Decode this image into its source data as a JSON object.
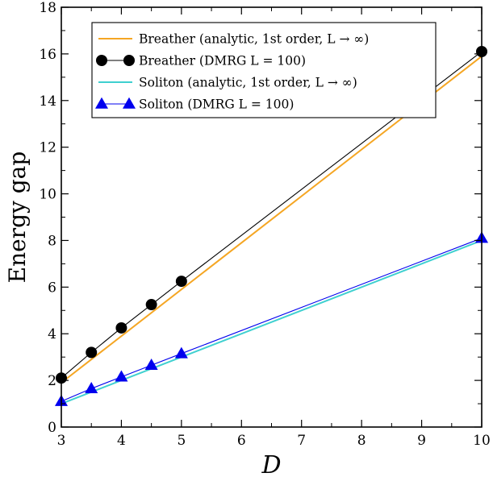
{
  "chart_data": {
    "type": "line",
    "xlabel": "D",
    "ylabel": "Energy gap",
    "xlim": [
      3,
      10
    ],
    "ylim": [
      0,
      18
    ],
    "xticks": [
      3,
      4,
      5,
      6,
      7,
      8,
      9,
      10
    ],
    "yticks": [
      0,
      2,
      4,
      6,
      8,
      10,
      12,
      14,
      16,
      18
    ],
    "grid": false,
    "legend_position": "top-center",
    "series": [
      {
        "name": "Breather (analytic, 1st order, L → ∞)",
        "style": "line",
        "color": "#f5a623",
        "x": [
          3,
          10
        ],
        "y": [
          1.9,
          15.9
        ]
      },
      {
        "name": "Breather (DMRG L = 100)",
        "style": "line-circle",
        "color": "#000000",
        "x": [
          3,
          3.5,
          4,
          4.5,
          5,
          10
        ],
        "y": [
          2.1,
          3.2,
          4.25,
          5.25,
          6.25,
          16.1
        ]
      },
      {
        "name": "Soliton (analytic, 1st order, L → ∞)",
        "style": "line",
        "color": "#3fd0d0",
        "x": [
          3,
          10
        ],
        "y": [
          1.0,
          8.0
        ]
      },
      {
        "name": "Soliton (DMRG L = 100)",
        "style": "line-triangle",
        "color": "#0000ee",
        "x": [
          3,
          3.5,
          4,
          4.5,
          5,
          10
        ],
        "y": [
          1.1,
          1.65,
          2.15,
          2.65,
          3.15,
          8.1
        ]
      }
    ]
  }
}
